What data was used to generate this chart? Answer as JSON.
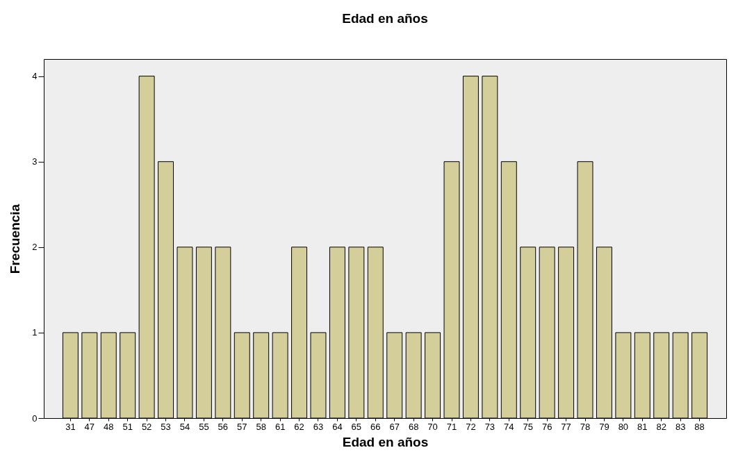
{
  "chart_data": {
    "type": "bar",
    "title": "Edad en años",
    "xlabel": "Edad en años",
    "ylabel": "Frecuencia",
    "categories": [
      "31",
      "47",
      "48",
      "51",
      "52",
      "53",
      "54",
      "55",
      "56",
      "57",
      "58",
      "61",
      "62",
      "63",
      "64",
      "65",
      "66",
      "67",
      "68",
      "70",
      "71",
      "72",
      "73",
      "74",
      "75",
      "76",
      "77",
      "78",
      "79",
      "80",
      "81",
      "82",
      "83",
      "88"
    ],
    "values": [
      1,
      1,
      1,
      1,
      4,
      3,
      2,
      2,
      2,
      1,
      1,
      1,
      2,
      1,
      2,
      2,
      2,
      1,
      1,
      1,
      3,
      4,
      4,
      3,
      2,
      2,
      2,
      3,
      2,
      1,
      1,
      1,
      1,
      1
    ],
    "color": "#d3ce9a",
    "ylim": [
      0,
      4.2
    ],
    "yticks": [
      0,
      1,
      2,
      3,
      4
    ],
    "grid": false
  }
}
